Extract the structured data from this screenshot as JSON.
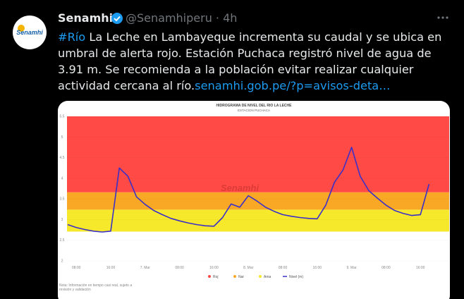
{
  "tweet": {
    "author": "Senamhi",
    "meta": "@Senamhiperu · 4h",
    "avatar_text": "Senamhi",
    "hashtag": "#Río",
    "body": " La Leche en Lambayeque incrementa su caudal y se ubica en umbral de alerta rojo. Estación Puchaca registró nivel de agua de 3.91 m. Se recomienda a la población evitar realizar cualquier actividad cercana al río.",
    "link": "senamhi.gob.pe/?p=avisos-deta…"
  },
  "chart_data": {
    "type": "line",
    "title": "HIDROGRAMA DE NIVEL DEL RIO LA LECHE",
    "subtitle": "ESTACION PUCHACA",
    "watermark": "Senamhi",
    "note": "Nota: Información en tiempo casi real, sujeto a revisión y validación",
    "x_labels": [
      "08:00",
      "16:00",
      "7. Mar",
      "08:00",
      "16:00",
      "8. Mar",
      "08:00",
      "16:00",
      "9. Mar",
      "08:00",
      "16:00"
    ],
    "ylim": [
      2,
      5.5
    ],
    "yticks": [
      2,
      2.5,
      3,
      3.5,
      4,
      4.5,
      5,
      5.5
    ],
    "grid": true,
    "bands": [
      {
        "name": "Roj",
        "color": "#ff4a45",
        "from": 3.66,
        "to": 5.5
      },
      {
        "name": "Nar",
        "color": "#f9a825",
        "from": 3.24,
        "to": 3.66
      },
      {
        "name": "Ama",
        "color": "#f6e82a",
        "from": 2.71,
        "to": 3.24
      }
    ],
    "series": [
      {
        "name": "Nivel (m)",
        "color": "#3b2fc9",
        "values": [
          2.88,
          2.81,
          2.76,
          2.72,
          2.7,
          2.72,
          4.25,
          4.05,
          3.55,
          3.37,
          3.22,
          3.12,
          3.03,
          2.97,
          2.92,
          2.88,
          2.85,
          2.84,
          3.05,
          3.38,
          3.3,
          3.58,
          3.45,
          3.3,
          3.2,
          3.12,
          3.08,
          3.05,
          3.03,
          3.02,
          3.35,
          3.9,
          4.2,
          4.75,
          4.05,
          3.7,
          3.52,
          3.35,
          3.22,
          3.15,
          3.1,
          3.12,
          3.86
        ]
      }
    ]
  }
}
